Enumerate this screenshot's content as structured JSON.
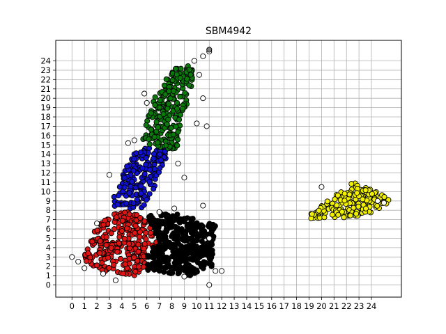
{
  "chart_data": {
    "type": "scatter",
    "title": "SBM4942",
    "xlabel": "",
    "ylabel": "",
    "xlim": [
      -1.3,
      26.4
    ],
    "ylim": [
      -1.3,
      26.2
    ],
    "x_ticks": [
      0,
      1,
      2,
      3,
      4,
      5,
      6,
      7,
      8,
      9,
      10,
      11,
      12,
      13,
      14,
      15,
      16,
      17,
      18,
      19,
      20,
      21,
      22,
      23,
      24
    ],
    "y_ticks": [
      0,
      1,
      2,
      3,
      4,
      5,
      6,
      7,
      8,
      9,
      10,
      11,
      12,
      13,
      14,
      15,
      16,
      17,
      18,
      19,
      20,
      21,
      22,
      23,
      24
    ],
    "grid": true,
    "series": [
      {
        "color": "#ff0000",
        "marker_fill": "#e11414",
        "region": [
          [
            1.0,
            3.5
          ],
          [
            2.0,
            6.5
          ],
          [
            3.0,
            7.5
          ],
          [
            4.5,
            8.0
          ],
          [
            5.5,
            7.5
          ],
          [
            6.5,
            6.0
          ],
          [
            7.0,
            4.5
          ],
          [
            6.0,
            4.0
          ],
          [
            6.0,
            2.0
          ],
          [
            5.0,
            1.0
          ],
          [
            2.5,
            1.5
          ],
          [
            1.0,
            2.5
          ]
        ],
        "count": 280
      },
      {
        "color": "#000000",
        "marker_fill": "#000000",
        "region": [
          [
            6.0,
            7.5
          ],
          [
            8.0,
            7.8
          ],
          [
            11.5,
            6.5
          ],
          [
            11.2,
            2.0
          ],
          [
            9.5,
            1.0
          ],
          [
            6.0,
            1.5
          ],
          [
            6.0,
            4.0
          ],
          [
            7.0,
            4.5
          ],
          [
            6.5,
            6.0
          ]
        ],
        "count": 420
      },
      {
        "color": "#0000ff",
        "marker_fill": "#1010d0",
        "region": [
          [
            3.0,
            8.5
          ],
          [
            5.0,
            14.5
          ],
          [
            8.0,
            15.0
          ],
          [
            7.5,
            13.5
          ],
          [
            6.5,
            10.0
          ],
          [
            5.5,
            8.0
          ],
          [
            4.5,
            8.0
          ]
        ],
        "count": 180
      },
      {
        "color": "#008000",
        "marker_fill": "#0a7a0a",
        "region": [
          [
            5.5,
            16.0
          ],
          [
            6.5,
            20.0
          ],
          [
            8.0,
            23.0
          ],
          [
            9.5,
            23.8
          ],
          [
            9.8,
            22.0
          ],
          [
            9.0,
            18.5
          ],
          [
            8.5,
            16.0
          ],
          [
            8.5,
            14.5
          ],
          [
            6.0,
            14.8
          ]
        ],
        "count": 220
      },
      {
        "color": "#ffff00",
        "marker_fill": "#f0f000",
        "region": [
          [
            19.0,
            7.5
          ],
          [
            21.0,
            9.5
          ],
          [
            22.5,
            11.0
          ],
          [
            24.5,
            10.0
          ],
          [
            25.5,
            9.0
          ],
          [
            24.5,
            8.0
          ],
          [
            23.0,
            7.3
          ],
          [
            19.0,
            7.0
          ]
        ],
        "count": 170
      }
    ],
    "outliers": [
      [
        0.0,
        3.0
      ],
      [
        0.5,
        2.5
      ],
      [
        1.0,
        1.8
      ],
      [
        2.0,
        6.6
      ],
      [
        2.5,
        1.2
      ],
      [
        3.5,
        0.5
      ],
      [
        3.0,
        11.8
      ],
      [
        4.5,
        15.2
      ],
      [
        5.0,
        15.5
      ],
      [
        5.8,
        20.5
      ],
      [
        6.0,
        19.5
      ],
      [
        7.0,
        7.8
      ],
      [
        8.2,
        8.2
      ],
      [
        9.0,
        0.9
      ],
      [
        10.5,
        8.5
      ],
      [
        11.0,
        0.0
      ],
      [
        11.5,
        1.5
      ],
      [
        12.0,
        1.5
      ],
      [
        11.0,
        5.0
      ],
      [
        9.0,
        11.5
      ],
      [
        8.5,
        13.0
      ],
      [
        9.8,
        24.0
      ],
      [
        10.5,
        24.5
      ],
      [
        11.0,
        25.0
      ],
      [
        10.2,
        22.5
      ],
      [
        10.5,
        20.0
      ],
      [
        10.8,
        17.0
      ],
      [
        10.0,
        17.3
      ],
      [
        20.0,
        10.5
      ],
      [
        24.5,
        9.0
      ],
      [
        25.0,
        8.8
      ]
    ],
    "legend": "none"
  }
}
